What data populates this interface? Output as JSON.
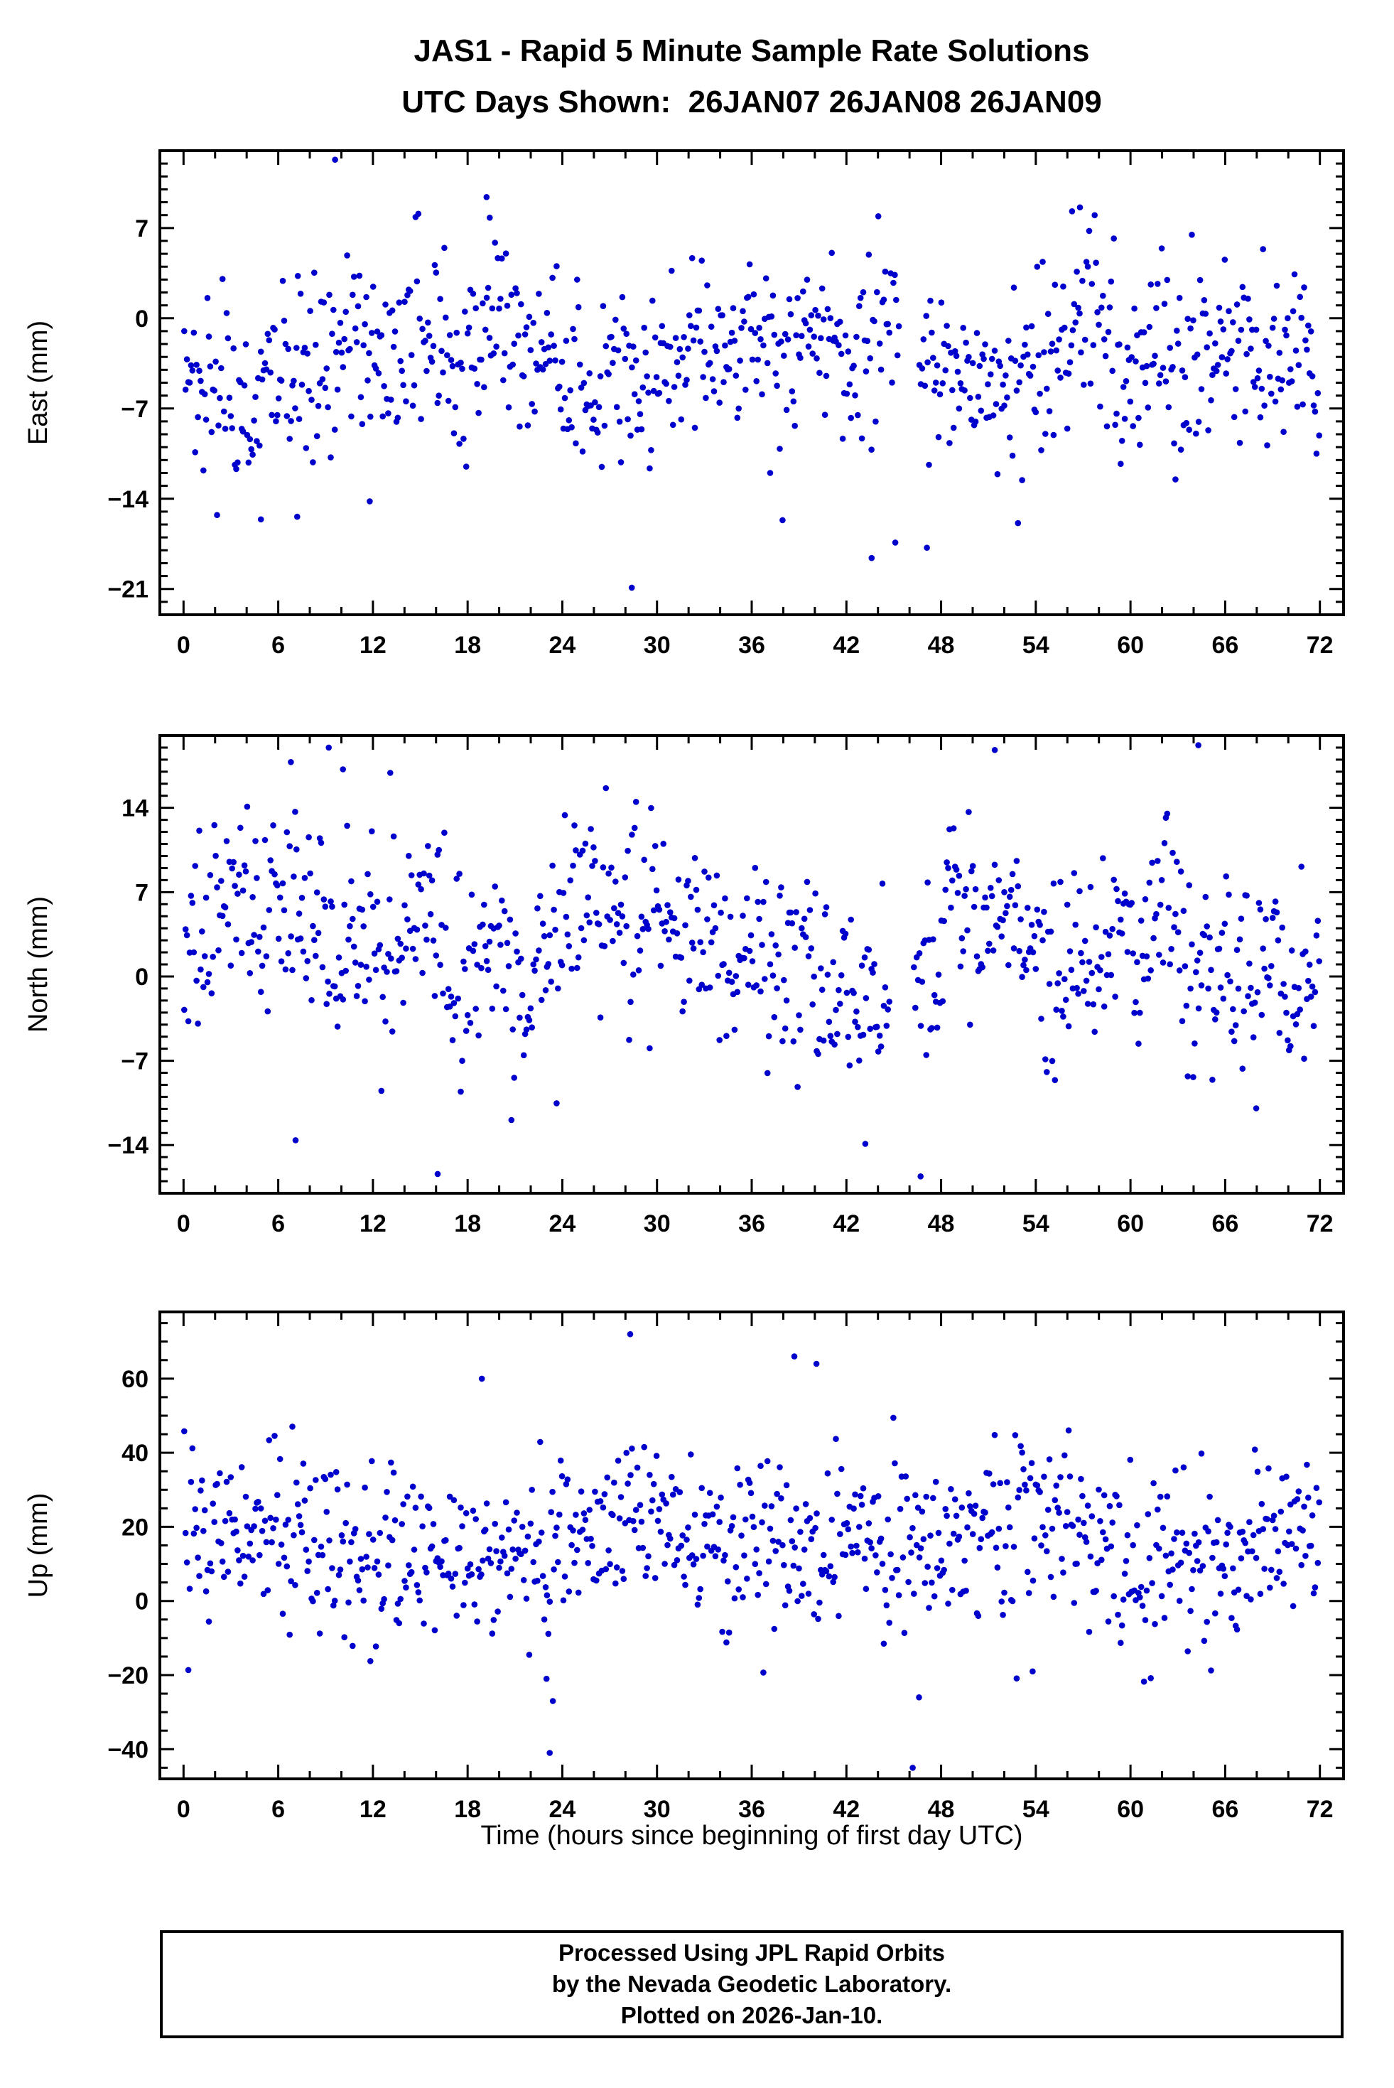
{
  "title": "JAS1 - Rapid 5 Minute Sample Rate Solutions",
  "subtitle": "UTC Days Shown:  26JAN07 26JAN08 26JAN09",
  "footer": {
    "line1": "Processed Using JPL Rapid Orbits",
    "line2": "by the Nevada Geodetic Laboratory.",
    "line3": "Plotted on 2026-Jan-10."
  },
  "chart_data": {
    "type": "scatter",
    "title": "JAS1 - Rapid 5 Minute Sample Rate Solutions",
    "subtitle": "UTC Days Shown:  26JAN07 26JAN08 26JAN09",
    "point_color": "#0000CC",
    "grid": false,
    "legend": false,
    "sample_interval_hours": 0.0833,
    "x_axis": {
      "label": "Time (hours since beginning of first day UTC)",
      "min": -1.5,
      "max": 73.5,
      "major_ticks": [
        0,
        6,
        12,
        18,
        24,
        30,
        36,
        42,
        48,
        54,
        60,
        66,
        72
      ],
      "minor_tick_step": 2
    },
    "panels": [
      {
        "id": "east",
        "ylabel": "East (mm)",
        "ylim": [
          -23,
          13
        ],
        "yticks": [
          7,
          0,
          -7,
          -14,
          -21
        ],
        "minor_step": 1,
        "gen": {
          "seed": 42,
          "n": 830,
          "offset": -3.2,
          "sd": 3.6,
          "a24": 1.6,
          "a12": 1.1,
          "clamp": [
            -16,
            8.5
          ]
        },
        "gaps": [
          [
            45.4,
            46.6
          ]
        ],
        "outliers": [
          [
            9.6,
            12.3
          ],
          [
            19.2,
            9.4
          ],
          [
            19.4,
            7.8
          ],
          [
            28.4,
            -20.9
          ],
          [
            43.6,
            -18.6
          ],
          [
            45.1,
            -17.4
          ],
          [
            56.3,
            8.3
          ],
          [
            56.8,
            8.6
          ],
          [
            11.8,
            -14.2
          ],
          [
            4.9,
            -15.6
          ],
          [
            7.2,
            -15.4
          ],
          [
            47.1,
            -17.8
          ]
        ]
      },
      {
        "id": "north",
        "ylabel": "North (mm)",
        "ylim": [
          -18,
          20
        ],
        "yticks": [
          14,
          7,
          0,
          -7,
          -14
        ],
        "minor_step": 1,
        "gen": {
          "seed": 7,
          "n": 830,
          "offset": 2.4,
          "sd": 4.2,
          "a24": 2.0,
          "a12": 1.2,
          "clamp": [
            -15,
            17
          ]
        },
        "gaps": [
          [
            44.8,
            46.2
          ]
        ],
        "outliers": [
          [
            9.2,
            19.0
          ],
          [
            51.4,
            18.8
          ],
          [
            64.3,
            19.2
          ],
          [
            16.1,
            -16.4
          ],
          [
            46.7,
            -16.6
          ],
          [
            7.1,
            -13.6
          ],
          [
            43.2,
            -13.9
          ],
          [
            6.8,
            17.8
          ],
          [
            10.1,
            17.2
          ],
          [
            13.1,
            16.9
          ]
        ]
      },
      {
        "id": "up",
        "ylabel": "Up (mm)",
        "ylim": [
          -48,
          78
        ],
        "yticks": [
          60,
          40,
          20,
          0,
          -20,
          -40
        ],
        "minor_step": 5,
        "gen": {
          "seed": 1234,
          "n": 830,
          "offset": 17,
          "sd": 11,
          "a24": 4.5,
          "a12": 3.0,
          "clamp": [
            -24,
            62
          ]
        },
        "gaps": [],
        "outliers": [
          [
            28.3,
            72
          ],
          [
            46.2,
            -45
          ],
          [
            23.2,
            -41
          ],
          [
            23.4,
            -27
          ],
          [
            23.0,
            -21
          ],
          [
            38.7,
            66
          ],
          [
            40.1,
            64
          ],
          [
            46.6,
            -26
          ],
          [
            18.9,
            60
          ],
          [
            53.8,
            -19
          ]
        ]
      }
    ]
  }
}
